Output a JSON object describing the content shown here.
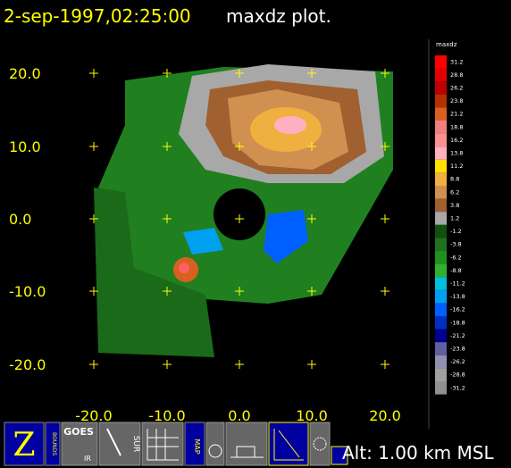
{
  "title": "2-sep-1997,02:25:00",
  "subtitle": "maxdz plot.",
  "x_labels": [
    "-20.0",
    "-10.0",
    "0.0",
    "10.0",
    "20.0"
  ],
  "y_labels": [
    "20.0",
    "10.0",
    "0.0",
    "-10.0",
    "-20.0"
  ],
  "colorbar": {
    "title": "maxdz",
    "labels": [
      "31.2",
      "28.8",
      "26.2",
      "23.8",
      "21.2",
      "18.8",
      "16.2",
      "13.8",
      "11.2",
      "8.8",
      "6.2",
      "3.8",
      "1.2",
      "-1.2",
      "-3.8",
      "-6.2",
      "-8.8",
      "-11.2",
      "-13.8",
      "-16.2",
      "-18.8",
      "-21.2",
      "-23.8",
      "-26.2",
      "-28.8",
      "-31.2"
    ],
    "colors": [
      "#ff0000",
      "#e00000",
      "#c00000",
      "#b83000",
      "#d86020",
      "#f08080",
      "#ff9090",
      "#ffb0c0",
      "#ffe000",
      "#f0b040",
      "#d09050",
      "#a06030",
      "#a8a8a8",
      "#105010",
      "#207020",
      "#209020",
      "#30b030",
      "#00c0e0",
      "#00a0f0",
      "#0060ff",
      "#0030c0",
      "#000090",
      "#6060a0",
      "#9090b0",
      "#a0a0a0",
      "#909090"
    ]
  },
  "status": "Alt: 1.00 km MSL",
  "toolbar": {
    "goes": "GOES",
    "ir": "IR",
    "sur": "SUR",
    "map": "MAP",
    "bounds": "BOUNDS"
  }
}
